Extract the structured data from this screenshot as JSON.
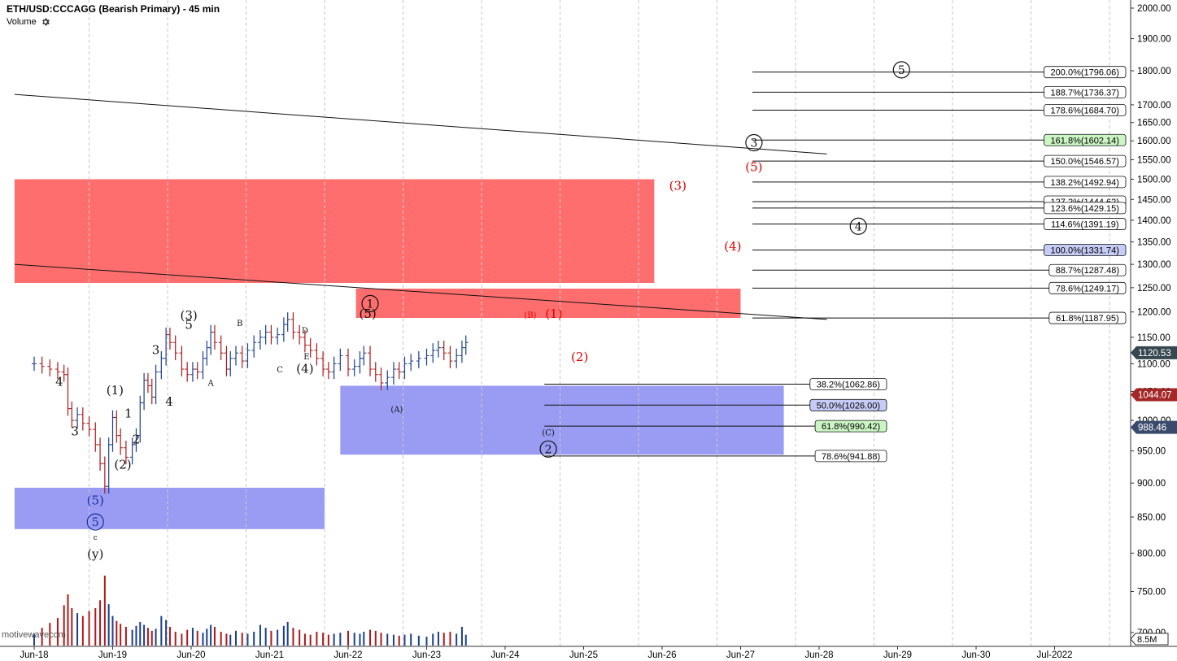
{
  "header": {
    "title": "ETH/USD:CCCAGG (Bearish Primary) - 45 min",
    "volume_label": "Volume"
  },
  "watermark": "motivewavecom",
  "colors": {
    "up": "#1a3f8f",
    "down": "#b01818",
    "resistance_zone": "#ff6e6e",
    "support_zone": "#9a9cf4",
    "red_wave": "#e00000",
    "fib_highlight_green": "#ccf5c4",
    "fib_highlight_blue": "#c6ccf6",
    "price_marker_dark": "#37474f",
    "price_marker_red": "#a52828",
    "price_marker_navy": "#3b4a6b"
  },
  "chart_data": {
    "type": "candlestick",
    "ylim": [
      700,
      2000
    ],
    "y_scale": "log",
    "y_ticks": [
      "2000.00",
      "1900.00",
      "1800.00",
      "1700.00",
      "1650.00",
      "1600.00",
      "1550.00",
      "1500.00",
      "1450.00",
      "1400.00",
      "1350.00",
      "1300.00",
      "1250.00",
      "1200.00",
      "1150.00",
      "1100.00",
      "1050.00",
      "1000.00",
      "950.00",
      "900.00",
      "850.00",
      "800.00",
      "750.00",
      "700.00"
    ],
    "x_ticks": [
      "Jun-18",
      "Jun-19",
      "Jun-20",
      "Jun-21",
      "Jun-22",
      "Jun-23",
      "Jun-24",
      "Jun-25",
      "Jun-26",
      "Jun-27",
      "Jun-28",
      "Jun-29",
      "Jun-30",
      "Jul-2022"
    ],
    "x_range_days": [
      17.75,
      31.0
    ],
    "price_markers": [
      {
        "label": "1120.53",
        "value": 1120.53,
        "style": "dark"
      },
      {
        "label": "1044.07",
        "value": 1044.07,
        "style": "red"
      },
      {
        "label": "988.46",
        "value": 988.46,
        "style": "navy"
      }
    ],
    "volume_marker": "8.5M",
    "close_series": [
      [
        18.0,
        1100
      ],
      [
        18.1,
        1095
      ],
      [
        18.2,
        1090
      ],
      [
        18.3,
        1085
      ],
      [
        18.38,
        1080
      ],
      [
        18.43,
        1020
      ],
      [
        18.48,
        1000
      ],
      [
        18.55,
        1010
      ],
      [
        18.62,
        995
      ],
      [
        18.7,
        985
      ],
      [
        18.78,
        960
      ],
      [
        18.84,
        930
      ],
      [
        18.9,
        895
      ],
      [
        18.95,
        960
      ],
      [
        19.0,
        1005
      ],
      [
        19.05,
        975
      ],
      [
        19.1,
        955
      ],
      [
        19.17,
        940
      ],
      [
        19.25,
        960
      ],
      [
        19.3,
        975
      ],
      [
        19.35,
        1030
      ],
      [
        19.4,
        1070
      ],
      [
        19.45,
        1060
      ],
      [
        19.5,
        1040
      ],
      [
        19.55,
        1085
      ],
      [
        19.62,
        1110
      ],
      [
        19.68,
        1155
      ],
      [
        19.73,
        1140
      ],
      [
        19.8,
        1120
      ],
      [
        19.88,
        1090
      ],
      [
        19.95,
        1080
      ],
      [
        20.02,
        1090
      ],
      [
        20.08,
        1085
      ],
      [
        20.15,
        1110
      ],
      [
        20.2,
        1130
      ],
      [
        20.25,
        1160
      ],
      [
        20.3,
        1140
      ],
      [
        20.38,
        1120
      ],
      [
        20.45,
        1090
      ],
      [
        20.5,
        1110
      ],
      [
        20.57,
        1120
      ],
      [
        20.65,
        1105
      ],
      [
        20.72,
        1125
      ],
      [
        20.8,
        1140
      ],
      [
        20.88,
        1150
      ],
      [
        20.95,
        1160
      ],
      [
        21.02,
        1150
      ],
      [
        21.1,
        1155
      ],
      [
        21.18,
        1175
      ],
      [
        21.23,
        1185
      ],
      [
        21.3,
        1160
      ],
      [
        21.38,
        1150
      ],
      [
        21.45,
        1135
      ],
      [
        21.52,
        1125
      ],
      [
        21.6,
        1110
      ],
      [
        21.68,
        1090
      ],
      [
        21.75,
        1085
      ],
      [
        21.82,
        1100
      ],
      [
        21.9,
        1115
      ],
      [
        22.0,
        1090
      ],
      [
        22.08,
        1095
      ],
      [
        22.15,
        1110
      ],
      [
        22.2,
        1120
      ],
      [
        22.28,
        1090
      ],
      [
        22.35,
        1080
      ],
      [
        22.42,
        1065
      ],
      [
        22.5,
        1075
      ],
      [
        22.58,
        1090
      ],
      [
        22.65,
        1085
      ],
      [
        22.72,
        1100
      ],
      [
        22.8,
        1105
      ],
      [
        22.9,
        1110
      ],
      [
        23.0,
        1115
      ],
      [
        23.08,
        1125
      ],
      [
        23.15,
        1130
      ],
      [
        23.22,
        1120
      ],
      [
        23.3,
        1105
      ],
      [
        23.38,
        1115
      ],
      [
        23.45,
        1130
      ],
      [
        23.5,
        1140
      ]
    ],
    "volume_series": [
      [
        18.0,
        120
      ],
      [
        18.1,
        180
      ],
      [
        18.2,
        230
      ],
      [
        18.3,
        280
      ],
      [
        18.38,
        410
      ],
      [
        18.43,
        520
      ],
      [
        18.48,
        380
      ],
      [
        18.55,
        330
      ],
      [
        18.62,
        300
      ],
      [
        18.7,
        350
      ],
      [
        18.78,
        380
      ],
      [
        18.84,
        460
      ],
      [
        18.9,
        710
      ],
      [
        18.95,
        420
      ],
      [
        19.0,
        300
      ],
      [
        19.05,
        250
      ],
      [
        19.1,
        220
      ],
      [
        19.17,
        190
      ],
      [
        19.25,
        160
      ],
      [
        19.3,
        200
      ],
      [
        19.35,
        240
      ],
      [
        19.4,
        210
      ],
      [
        19.45,
        180
      ],
      [
        19.5,
        150
      ],
      [
        19.55,
        170
      ],
      [
        19.62,
        300
      ],
      [
        19.68,
        260
      ],
      [
        19.73,
        190
      ],
      [
        19.8,
        140
      ],
      [
        19.88,
        120
      ],
      [
        19.95,
        160
      ],
      [
        20.02,
        180
      ],
      [
        20.08,
        150
      ],
      [
        20.15,
        130
      ],
      [
        20.2,
        170
      ],
      [
        20.25,
        210
      ],
      [
        20.3,
        190
      ],
      [
        20.38,
        140
      ],
      [
        20.45,
        120
      ],
      [
        20.5,
        110
      ],
      [
        20.57,
        150
      ],
      [
        20.65,
        130
      ],
      [
        20.72,
        120
      ],
      [
        20.8,
        140
      ],
      [
        20.88,
        210
      ],
      [
        20.95,
        180
      ],
      [
        21.02,
        150
      ],
      [
        21.1,
        160
      ],
      [
        21.18,
        200
      ],
      [
        21.23,
        240
      ],
      [
        21.3,
        180
      ],
      [
        21.38,
        160
      ],
      [
        21.45,
        120
      ],
      [
        21.52,
        110
      ],
      [
        21.6,
        140
      ],
      [
        21.68,
        130
      ],
      [
        21.75,
        110
      ],
      [
        21.82,
        120
      ],
      [
        21.9,
        130
      ],
      [
        22.0,
        150
      ],
      [
        22.08,
        130
      ],
      [
        22.15,
        120
      ],
      [
        22.2,
        140
      ],
      [
        22.28,
        160
      ],
      [
        22.35,
        150
      ],
      [
        22.42,
        130
      ],
      [
        22.5,
        120
      ],
      [
        22.58,
        110
      ],
      [
        22.65,
        100
      ],
      [
        22.72,
        110
      ],
      [
        22.8,
        120
      ],
      [
        22.9,
        100
      ],
      [
        23.0,
        90
      ],
      [
        23.08,
        120
      ],
      [
        23.15,
        140
      ],
      [
        23.22,
        130
      ],
      [
        23.3,
        140
      ],
      [
        23.38,
        120
      ],
      [
        23.45,
        190
      ],
      [
        23.5,
        110
      ]
    ],
    "zones": [
      {
        "kind": "resistance",
        "x0": 17.75,
        "x1": 25.9,
        "y0": 1260,
        "y1": 1500
      },
      {
        "kind": "resistance",
        "x0": 22.1,
        "x1": 27.0,
        "y0": 1188,
        "y1": 1248
      },
      {
        "kind": "support",
        "x0": 21.9,
        "x1": 27.55,
        "y0": 944,
        "y1": 1060
      },
      {
        "kind": "support",
        "x0": 17.75,
        "x1": 21.7,
        "y0": 833,
        "y1": 893
      }
    ],
    "trendlines": [
      {
        "x0": 17.75,
        "y0": 1730,
        "x1": 28.1,
        "y1": 1565
      },
      {
        "x0": 17.75,
        "y0": 1300,
        "x1": 28.1,
        "y1": 1185
      }
    ],
    "fib_upper": [
      {
        "label": "200.0%(1796.06)",
        "value": 1796.06,
        "x0": 27.15
      },
      {
        "label": "188.7%(1736.37)",
        "value": 1736.37,
        "x0": 27.15
      },
      {
        "label": "178.6%(1684.70)",
        "value": 1684.7,
        "x0": 27.15
      },
      {
        "label": "161.8%(1602.14)",
        "value": 1602.14,
        "x0": 27.15,
        "highlight": "green"
      },
      {
        "label": "150.0%(1546.57)",
        "value": 1546.57,
        "x0": 27.15
      },
      {
        "label": "138.2%(1492.94)",
        "value": 1492.94,
        "x0": 27.15
      },
      {
        "label": "127.2%(1444.62)",
        "value": 1444.62,
        "x0": 27.15
      },
      {
        "label": "123.6%(1429.15)",
        "value": 1429.15,
        "x0": 27.15
      },
      {
        "label": "114.6%(1391.19)",
        "value": 1391.19,
        "x0": 27.15
      },
      {
        "label": "100.0%(1331.74)",
        "value": 1331.74,
        "x0": 27.15,
        "highlight": "blue"
      },
      {
        "label": "88.7%(1287.48)",
        "value": 1287.48,
        "x0": 27.15
      },
      {
        "label": "78.6%(1249.17)",
        "value": 1249.17,
        "x0": 27.15
      },
      {
        "label": "61.8%(1187.95)",
        "value": 1187.95,
        "x0": 27.15
      }
    ],
    "fib_lower": [
      {
        "label": "38.2%(1062.86)",
        "value": 1062.86,
        "x0": 24.5
      },
      {
        "label": "50.0%(1026.00)",
        "value": 1026.0,
        "x0": 24.5,
        "highlight": "blue"
      },
      {
        "label": "61.8%(990.42)",
        "value": 990.42,
        "x0": 24.5,
        "highlight": "green"
      },
      {
        "label": "78.6%(941.88)",
        "value": 941.88,
        "x0": 24.5
      }
    ],
    "wave_labels": [
      {
        "text": "4",
        "x": 18.32,
        "y": 1060,
        "size": 15
      },
      {
        "text": "3",
        "x": 18.52,
        "y": 975,
        "size": 15
      },
      {
        "text": "(1)",
        "x": 19.03,
        "y": 1045,
        "size": 15
      },
      {
        "text": "1",
        "x": 19.2,
        "y": 1005,
        "size": 15
      },
      {
        "text": "2",
        "x": 19.3,
        "y": 962,
        "size": 15
      },
      {
        "text": "(2)",
        "x": 19.13,
        "y": 922,
        "size": 15
      },
      {
        "text": "3",
        "x": 19.55,
        "y": 1118,
        "size": 15
      },
      {
        "text": "4",
        "x": 19.72,
        "y": 1025,
        "size": 15
      },
      {
        "text": "(3)",
        "x": 19.97,
        "y": 1185,
        "size": 15
      },
      {
        "text": "5",
        "x": 19.97,
        "y": 1166,
        "size": 15
      },
      {
        "text": "A",
        "x": 20.25,
        "y": 1060,
        "size": 10
      },
      {
        "text": "B",
        "x": 20.62,
        "y": 1172,
        "size": 10
      },
      {
        "text": "C",
        "x": 21.13,
        "y": 1084,
        "size": 10
      },
      {
        "text": "D",
        "x": 21.45,
        "y": 1158,
        "size": 10
      },
      {
        "text": "E",
        "x": 21.47,
        "y": 1108,
        "size": 10
      },
      {
        "text": "(4)",
        "x": 21.45,
        "y": 1083,
        "size": 15
      },
      {
        "text": "(5)",
        "x": 22.25,
        "y": 1188,
        "size": 15
      },
      {
        "text": "(A)",
        "x": 22.62,
        "y": 1014,
        "size": 10
      },
      {
        "text": "(B)",
        "x": 24.32,
        "y": 1188,
        "size": 10,
        "color": "red"
      },
      {
        "text": "(1)",
        "x": 24.62,
        "y": 1188,
        "size": 15,
        "color": "red"
      },
      {
        "text": "(2)",
        "x": 24.95,
        "y": 1105,
        "size": 15,
        "color": "red"
      },
      {
        "text": "(3)",
        "x": 26.2,
        "y": 1473,
        "size": 15,
        "color": "red"
      },
      {
        "text": "(4)",
        "x": 26.9,
        "y": 1331,
        "size": 15,
        "color": "red"
      },
      {
        "text": "(5)",
        "x": 27.17,
        "y": 1521,
        "size": 15,
        "color": "red"
      },
      {
        "text": "(C)",
        "x": 24.55,
        "y": 975,
        "size": 10
      },
      {
        "text": "(5)",
        "x": 18.78,
        "y": 868,
        "size": 15,
        "color": "navy"
      },
      {
        "text": "c",
        "x": 18.78,
        "y": 818,
        "size": 9
      },
      {
        "text": "(y)",
        "x": 18.78,
        "y": 793,
        "size": 15
      }
    ],
    "circle_labels": [
      {
        "text": "1",
        "x": 22.28,
        "y": 1217
      },
      {
        "text": "5",
        "x": 18.78,
        "y": 843,
        "color": "navy"
      },
      {
        "text": "2",
        "x": 24.55,
        "y": 953
      },
      {
        "text": "3",
        "x": 27.17,
        "y": 1595
      },
      {
        "text": "4",
        "x": 28.5,
        "y": 1386
      },
      {
        "text": "5",
        "x": 29.05,
        "y": 1803
      }
    ]
  }
}
